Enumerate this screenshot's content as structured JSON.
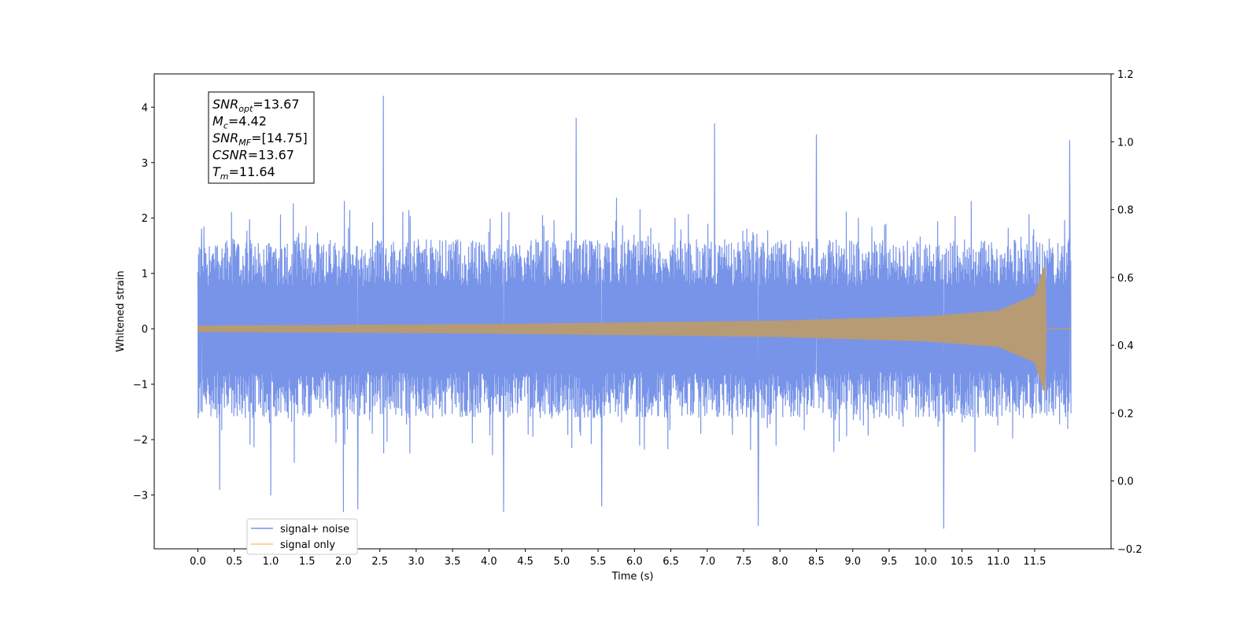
{
  "chart_data": {
    "type": "line",
    "xlabel": "Time (s)",
    "ylabel": "Whitened strain",
    "xlim": [
      -0.6,
      12.55
    ],
    "ylim": [
      -3.97,
      4.6
    ],
    "y2lim": [
      -0.2,
      1.2
    ],
    "x_ticks": [
      "0.0",
      "0.5",
      "1.0",
      "1.5",
      "2.0",
      "2.5",
      "3.0",
      "3.5",
      "4.0",
      "4.5",
      "5.0",
      "5.5",
      "6.0",
      "6.5",
      "7.0",
      "7.5",
      "8.0",
      "8.5",
      "9.0",
      "9.5",
      "10.0",
      "10.5",
      "11.0",
      "11.5"
    ],
    "y_ticks": [
      "−3",
      "−2",
      "−1",
      "0",
      "1",
      "2",
      "3",
      "4"
    ],
    "y2_ticks": [
      "−0.2",
      "0.0",
      "0.2",
      "0.4",
      "0.6",
      "0.8",
      "1.0",
      "1.2"
    ],
    "series": [
      {
        "name": "signal+ noise",
        "color": "#7894e8",
        "x_range": [
          0.0,
          12.0
        ],
        "envelope_typical": 1.4,
        "samples": [
          {
            "x": 0.05,
            "y": 1.8
          },
          {
            "x": 0.3,
            "y": -2.9
          },
          {
            "x": 1.0,
            "y": -3.0
          },
          {
            "x": 2.0,
            "y": -3.3
          },
          {
            "x": 2.2,
            "y": -3.25
          },
          {
            "x": 2.55,
            "y": 4.2
          },
          {
            "x": 4.2,
            "y": -3.3
          },
          {
            "x": 5.2,
            "y": 3.8
          },
          {
            "x": 5.55,
            "y": -3.2
          },
          {
            "x": 7.1,
            "y": 3.7
          },
          {
            "x": 7.7,
            "y": -3.55
          },
          {
            "x": 8.5,
            "y": 3.5
          },
          {
            "x": 10.25,
            "y": -3.6
          },
          {
            "x": 11.98,
            "y": 3.4
          }
        ]
      },
      {
        "name": "signal only",
        "color": "#f8c878",
        "x_range": [
          0.0,
          12.0
        ],
        "merger_time": 11.64,
        "envelope": [
          {
            "x": 0.0,
            "y": 0.05
          },
          {
            "x": 4.0,
            "y": 0.08
          },
          {
            "x": 8.0,
            "y": 0.14
          },
          {
            "x": 10.0,
            "y": 0.22
          },
          {
            "x": 11.0,
            "y": 0.32
          },
          {
            "x": 11.5,
            "y": 0.6
          },
          {
            "x": 11.64,
            "y": 1.15
          },
          {
            "x": 11.66,
            "y": 0.0
          }
        ]
      }
    ],
    "annotations": [
      {
        "base": "SNR",
        "sub": "opt",
        "value": "=13.67"
      },
      {
        "base": "M",
        "sub": "c",
        "value": "=4.42"
      },
      {
        "base": "SNR",
        "sub": "MF",
        "value": "=[14.75]"
      },
      {
        "base": "CSNR",
        "sub": "",
        "value": "=13.67"
      },
      {
        "base": "T",
        "sub": "m",
        "value": "=11.64"
      }
    ],
    "legend": {
      "placement": "lower-left",
      "entries": [
        "signal+ noise",
        "signal only"
      ]
    }
  }
}
